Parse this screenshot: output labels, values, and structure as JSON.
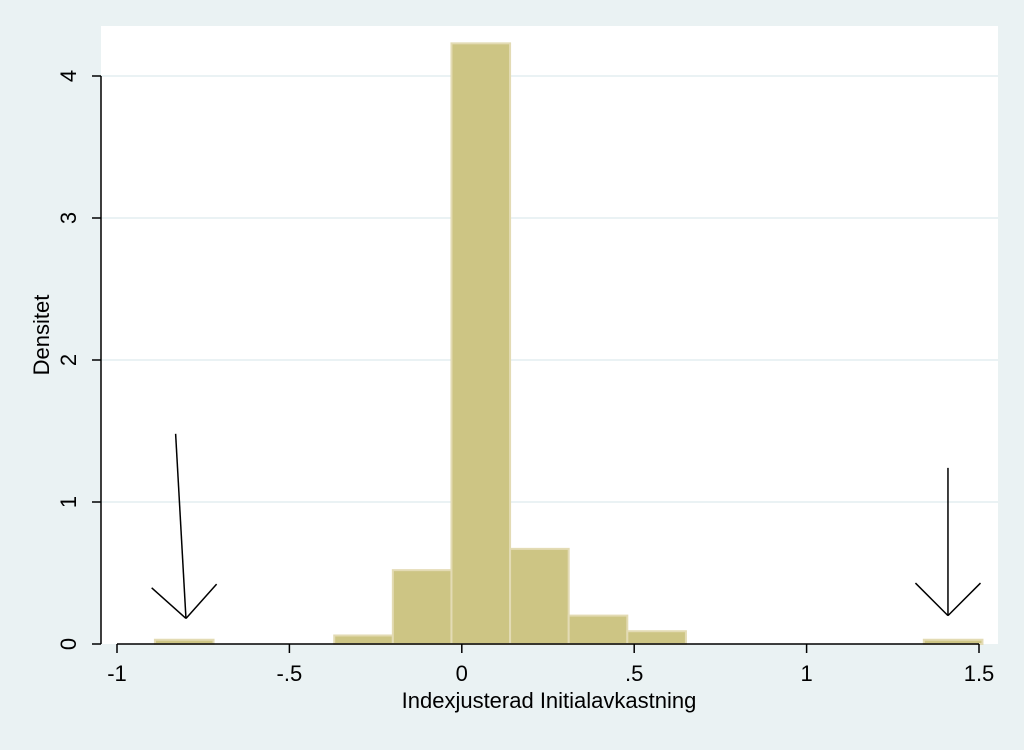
{
  "chart_data": {
    "type": "bar",
    "subtype": "histogram",
    "title": "",
    "xlabel": "Indexjusterad Initialavkastning",
    "ylabel": "Densitet",
    "xlim": [
      -1,
      1.5
    ],
    "ylim": [
      0,
      4.3
    ],
    "xticks": [
      {
        "value": -1,
        "label": "-1"
      },
      {
        "value": -0.5,
        "label": "-.5"
      },
      {
        "value": 0,
        "label": "0"
      },
      {
        "value": 0.5,
        "label": ".5"
      },
      {
        "value": 1,
        "label": "1"
      },
      {
        "value": 1.5,
        "label": "1.5"
      }
    ],
    "yticks": [
      {
        "value": 0,
        "label": "0"
      },
      {
        "value": 1,
        "label": "1"
      },
      {
        "value": 2,
        "label": "2"
      },
      {
        "value": 3,
        "label": "3"
      },
      {
        "value": 4,
        "label": "4"
      }
    ],
    "grid": true,
    "bins": [
      {
        "start": -0.89,
        "end": -0.72,
        "density": 0.03
      },
      {
        "start": -0.37,
        "end": -0.2,
        "density": 0.06
      },
      {
        "start": -0.2,
        "end": -0.03,
        "density": 0.52
      },
      {
        "start": -0.03,
        "end": 0.14,
        "density": 4.23
      },
      {
        "start": 0.14,
        "end": 0.31,
        "density": 0.67
      },
      {
        "start": 0.31,
        "end": 0.48,
        "density": 0.2
      },
      {
        "start": 0.48,
        "end": 0.65,
        "density": 0.09
      },
      {
        "start": 1.34,
        "end": 1.51,
        "density": 0.03
      }
    ],
    "annotations": [
      {
        "type": "arrow",
        "tail": [
          -0.83,
          1.48
        ],
        "head": [
          -0.8,
          0.18
        ]
      },
      {
        "type": "arrow",
        "tail": [
          1.41,
          1.24
        ],
        "head": [
          1.41,
          0.2
        ]
      }
    ],
    "colors": {
      "bar_fill": "#cdc584",
      "bar_stroke": "#e3dbb4",
      "plot_background": "#ffffff",
      "page_background": "#eaf2f3",
      "grid": "#e4eef0",
      "axis": "#000000"
    }
  }
}
